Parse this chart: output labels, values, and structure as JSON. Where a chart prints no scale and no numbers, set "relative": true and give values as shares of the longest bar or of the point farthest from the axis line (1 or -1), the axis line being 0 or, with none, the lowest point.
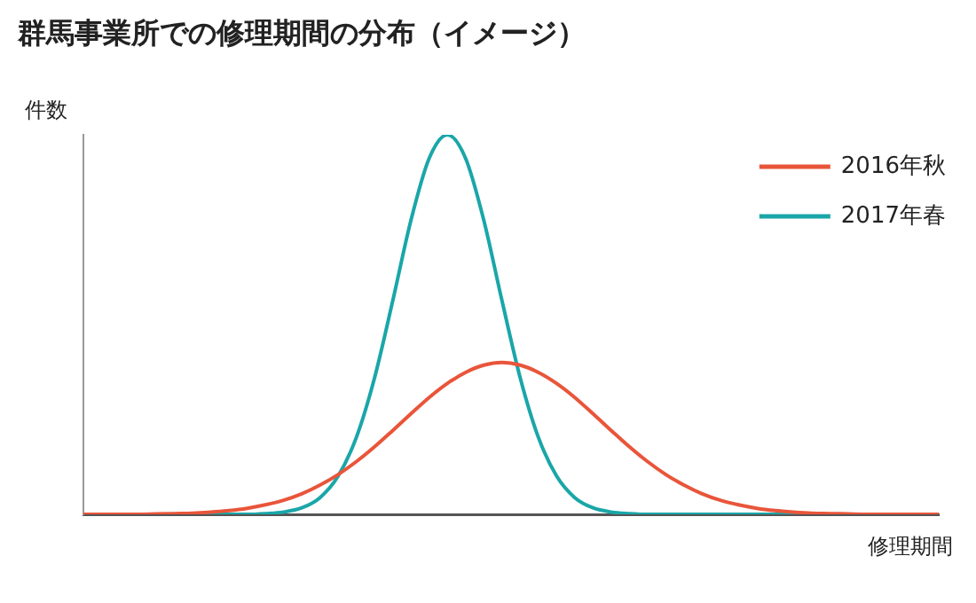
{
  "chart_data": {
    "type": "line",
    "title": "群馬事業所での修理期間の分布（イメージ）",
    "xlabel": "修理期間",
    "ylabel": "件数",
    "relative": true,
    "legend": "top right",
    "marker": "none",
    "grid": false,
    "tick_labels": false,
    "categories": [
      null,
      null,
      null,
      null,
      null,
      null,
      null,
      null,
      null,
      null,
      null,
      null,
      null,
      null,
      null,
      null,
      null,
      null,
      null,
      null,
      null,
      null,
      null,
      null,
      null,
      null,
      null,
      null,
      null,
      null,
      null,
      null,
      null,
      null,
      null,
      null,
      null,
      null,
      null,
      null,
      null,
      null,
      null,
      null,
      null,
      null,
      null,
      null
    ],
    "series": [
      {
        "name": "2016年秋",
        "color": "#e9553a",
        "values": [
          0,
          0,
          0,
          0,
          0.001,
          0.002,
          0.003,
          0.006,
          0.01,
          0.016,
          0.025,
          0.037,
          0.054,
          0.077,
          0.105,
          0.139,
          0.178,
          0.221,
          0.265,
          0.308,
          0.345,
          0.374,
          0.393,
          0.4,
          0.393,
          0.374,
          0.345,
          0.308,
          0.265,
          0.221,
          0.178,
          0.139,
          0.105,
          0.077,
          0.054,
          0.037,
          0.025,
          0.016,
          0.01,
          0.006,
          0.003,
          0.002,
          0.001,
          0,
          0,
          0,
          0,
          0
        ]
      },
      {
        "name": "2017年春",
        "color": "#1aa6a8",
        "values": [
          null,
          null,
          null,
          null,
          null,
          null,
          0,
          0,
          0,
          0,
          0.002,
          0.006,
          0.017,
          0.044,
          0.101,
          0.203,
          0.36,
          0.563,
          0.775,
          0.938,
          1,
          0.938,
          0.775,
          0.563,
          0.36,
          0.203,
          0.101,
          0.044,
          0.017,
          0.006,
          0.002,
          0,
          0,
          0,
          0,
          0,
          0,
          0,
          0,
          0,
          0,
          null,
          null,
          null,
          null,
          null,
          null,
          null
        ]
      }
    ]
  }
}
